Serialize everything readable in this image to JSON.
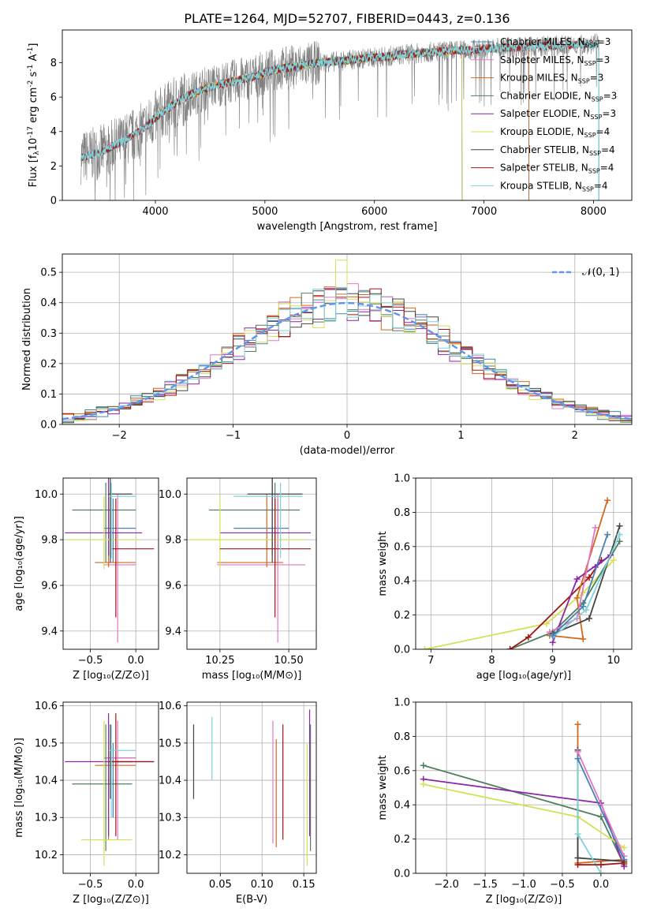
{
  "figure": {
    "title": "PLATE=1264, MJD=52707, FIBERID=0443, z=0.136"
  },
  "colors": {
    "chabrier_miles": "#4682b4",
    "salpeter_miles": "#e377c2",
    "kroupa_miles": "#d2691e",
    "chabrier_elodie": "#4f7f5f",
    "salpeter_elodie": "#8e24aa",
    "kroupa_elodie": "#d4e157",
    "chabrier_stelib": "#444444",
    "salpeter_stelib": "#a31515",
    "kroupa_stelib": "#7fd3d8",
    "data": "#808080",
    "normal_curve": "#6495ed"
  },
  "chart_data": [
    {
      "type": "line",
      "id": "spectrum",
      "xlabel": "wavelength [Angstrom, rest frame]",
      "ylabel_parts": [
        "Flux [f",
        "λ",
        "10",
        "-17",
        " erg cm",
        "-2",
        " s",
        "-1",
        " A",
        "-1",
        "]"
      ],
      "xlim": [
        3150,
        8350
      ],
      "ylim": [
        0,
        9.9
      ],
      "xticks": [
        "4000",
        "5000",
        "6000",
        "7000",
        "8000"
      ],
      "yticks": [
        "0",
        "2",
        "4",
        "6",
        "8"
      ],
      "legend_placement": "right",
      "legend": [
        {
          "name": "Chabrier MILES, N",
          "sub": "SSP",
          "tail": "=3",
          "color_key": "chabrier_miles"
        },
        {
          "name": "Salpeter MILES, N",
          "sub": "SSP",
          "tail": "=3",
          "color_key": "salpeter_miles"
        },
        {
          "name": "Kroupa MILES, N",
          "sub": "SSP",
          "tail": "=3",
          "color_key": "kroupa_miles"
        },
        {
          "name": "Chabrier ELODIE, N",
          "sub": "SSP",
          "tail": "=3",
          "color_key": "chabrier_elodie"
        },
        {
          "name": "Salpeter ELODIE, N",
          "sub": "SSP",
          "tail": "=3",
          "color_key": "salpeter_elodie"
        },
        {
          "name": "Kroupa ELODIE, N",
          "sub": "SSP",
          "tail": "=4",
          "color_key": "kroupa_elodie"
        },
        {
          "name": "Chabrier STELIB, N",
          "sub": "SSP",
          "tail": "=4",
          "color_key": "chabrier_stelib"
        },
        {
          "name": "Salpeter STELIB, N",
          "sub": "SSP",
          "tail": "=4",
          "color_key": "salpeter_stelib"
        },
        {
          "name": "Kroupa STELIB, N",
          "sub": "SSP",
          "tail": "=4",
          "color_key": "kroupa_stelib"
        }
      ],
      "continuum": {
        "x": [
          3320,
          3500,
          3700,
          3900,
          4000,
          4100,
          4300,
          4500,
          4700,
          4900,
          5100,
          5300,
          5500,
          5700,
          5900,
          6100,
          6300,
          6500,
          6700,
          6900,
          7100,
          7300,
          7500,
          7700,
          7900,
          8050
        ],
        "y": [
          2.5,
          2.8,
          3.4,
          4.2,
          4.8,
          5.3,
          6.1,
          6.6,
          6.9,
          7.2,
          7.6,
          7.8,
          8.0,
          8.1,
          8.25,
          8.35,
          8.5,
          8.6,
          8.7,
          8.75,
          8.85,
          8.9,
          8.95,
          9.0,
          9.05,
          9.1
        ]
      },
      "model_ranges": {
        "miles": [
          3540,
          7410
        ],
        "elodie": [
          3900,
          6800
        ],
        "stelib": [
          3320,
          8050
        ]
      }
    },
    {
      "type": "bar",
      "id": "residuals",
      "xlabel": "(data-model)/error",
      "ylabel": "Normed distribution",
      "xlim": [
        -2.5,
        2.5
      ],
      "ylim": [
        0,
        0.56
      ],
      "xticks": [
        "−2",
        "−1",
        "0",
        "1",
        "2"
      ],
      "yticks": [
        "0.0",
        "0.1",
        "0.2",
        "0.3",
        "0.4",
        "0.5"
      ],
      "legend_label": "𝒩(0, 1)",
      "legend_placement": "top-right",
      "bin_width": 0.1,
      "note": "nine step histograms plus a dashed normal curve"
    },
    {
      "type": "scatter",
      "id": "age_vs_Z",
      "xlabel": "Z [log₁₀(Z/Z⊙)]",
      "ylabel": "age  [log₁₀(age/yr)]",
      "xlim": [
        -0.8,
        0.25
      ],
      "ylim": [
        9.32,
        10.07
      ],
      "xticks": [
        "−0.5",
        "0.0"
      ],
      "yticks": [
        "9.4",
        "9.6",
        "9.8",
        "10.0"
      ],
      "points": [
        {
          "k": "chabrier_miles",
          "x": -0.25,
          "y": 9.85,
          "ex": [
            -0.35,
            0.0
          ],
          "ey": [
            9.7,
            9.98
          ]
        },
        {
          "k": "salpeter_miles",
          "x": -0.2,
          "y": 9.69,
          "ex": [
            -0.35,
            0.0
          ],
          "ey": [
            9.35,
            10.0
          ]
        },
        {
          "k": "kroupa_miles",
          "x": -0.3,
          "y": 9.7,
          "ex": [
            -0.45,
            0.0
          ],
          "ey": [
            9.68,
            10.0
          ]
        },
        {
          "k": "chabrier_elodie",
          "x": -0.33,
          "y": 9.93,
          "ex": [
            -0.7,
            0.0
          ],
          "ey": [
            9.7,
            10.05
          ]
        },
        {
          "k": "salpeter_elodie",
          "x": -0.3,
          "y": 9.83,
          "ex": [
            -0.78,
            0.07
          ],
          "ey": [
            9.73,
            10.08
          ]
        },
        {
          "k": "kroupa_elodie",
          "x": -0.35,
          "y": 9.8,
          "ex": [
            -0.75,
            0.05
          ],
          "ey": [
            9.67,
            9.99
          ]
        },
        {
          "k": "chabrier_stelib",
          "x": -0.28,
          "y": 10.0,
          "ex": [
            -0.3,
            -0.04
          ],
          "ey": [
            9.7,
            10.07
          ]
        },
        {
          "k": "salpeter_stelib",
          "x": -0.22,
          "y": 9.76,
          "ex": [
            -0.26,
            0.2
          ],
          "ey": [
            9.46,
            9.98
          ]
        },
        {
          "k": "kroupa_stelib",
          "x": -0.27,
          "y": 9.99,
          "ex": [
            -0.3,
            0.0
          ],
          "ey": [
            9.72,
            10.05
          ]
        }
      ]
    },
    {
      "type": "scatter",
      "id": "age_vs_mass",
      "xlabel": "mass [log₁₀(M/M⊙)]",
      "xlim": [
        10.13,
        10.6
      ],
      "ylim": [
        9.32,
        10.07
      ],
      "xticks": [
        "10.25",
        "10.50"
      ],
      "yticks": [
        "9.4",
        "9.6",
        "9.8",
        "10.0"
      ],
      "points": [
        {
          "k": "chabrier_miles",
          "x": 10.46,
          "y": 9.85,
          "ex": [
            10.3,
            10.5
          ],
          "ey": [
            9.7,
            9.98
          ]
        },
        {
          "k": "salpeter_miles",
          "x": 10.46,
          "y": 9.69,
          "ex": [
            10.24,
            10.56
          ],
          "ey": [
            9.35,
            10.0
          ]
        },
        {
          "k": "kroupa_miles",
          "x": 10.42,
          "y": 9.7,
          "ex": [
            10.24,
            10.48
          ],
          "ey": [
            9.68,
            10.0
          ]
        },
        {
          "k": "chabrier_elodie",
          "x": 10.45,
          "y": 9.93,
          "ex": [
            10.21,
            10.54
          ],
          "ey": [
            9.7,
            10.05
          ]
        },
        {
          "k": "salpeter_elodie",
          "x": 10.44,
          "y": 9.83,
          "ex": [
            10.25,
            10.58
          ],
          "ey": [
            9.73,
            10.08
          ]
        },
        {
          "k": "kroupa_elodie",
          "x": 10.25,
          "y": 9.8,
          "ex": [
            10.14,
            10.56
          ],
          "ey": [
            9.67,
            9.99
          ]
        },
        {
          "k": "chabrier_stelib",
          "x": 10.44,
          "y": 10.0,
          "ex": [
            10.35,
            10.55
          ],
          "ey": [
            9.7,
            10.07
          ]
        },
        {
          "k": "salpeter_stelib",
          "x": 10.45,
          "y": 9.76,
          "ex": [
            10.25,
            10.58
          ],
          "ey": [
            9.46,
            9.98
          ]
        },
        {
          "k": "kroupa_stelib",
          "x": 10.47,
          "y": 9.99,
          "ex": [
            10.3,
            10.55
          ],
          "ey": [
            9.72,
            10.05
          ]
        }
      ]
    },
    {
      "type": "line",
      "id": "weight_vs_age",
      "xlabel": "age  [log₁₀(age/yr)]",
      "ylabel": "mass weight",
      "xlim": [
        6.75,
        10.3
      ],
      "ylim": [
        0,
        1
      ],
      "xticks": [
        "7",
        "8",
        "9",
        "10"
      ],
      "yticks": [
        "0.0",
        "0.2",
        "0.4",
        "0.6",
        "0.8",
        "1.0"
      ],
      "series": [
        {
          "k": "kroupa_elodie",
          "x": [
            6.9,
            8.9,
            9.5,
            10.0
          ],
          "y": [
            0.0,
            0.15,
            0.33,
            0.52
          ]
        },
        {
          "k": "chabrier_elodie",
          "x": [
            8.3,
            9.0,
            9.5,
            10.1
          ],
          "y": [
            0.0,
            0.1,
            0.27,
            0.63
          ]
        },
        {
          "k": "salpeter_stelib",
          "x": [
            8.3,
            8.6,
            9.6,
            9.8
          ],
          "y": [
            0.0,
            0.07,
            0.42,
            0.52
          ]
        },
        {
          "k": "kroupa_miles",
          "x": [
            8.95,
            9.5,
            9.4,
            9.9
          ],
          "y": [
            0.08,
            0.06,
            0.3,
            0.87
          ]
        },
        {
          "k": "salpeter_elodie",
          "x": [
            9.0,
            9.4,
            9.95,
            9.7
          ],
          "y": [
            0.04,
            0.41,
            0.55,
            0.48
          ]
        },
        {
          "k": "salpeter_miles",
          "x": [
            8.95,
            9.4,
            9.7
          ],
          "y": [
            0.1,
            0.18,
            0.71
          ]
        },
        {
          "k": "chabrier_stelib",
          "x": [
            9.0,
            9.6,
            10.1
          ],
          "y": [
            0.09,
            0.18,
            0.72
          ]
        },
        {
          "k": "kroupa_stelib",
          "x": [
            9.0,
            9.55,
            10.1
          ],
          "y": [
            0.07,
            0.23,
            0.67
          ]
        },
        {
          "k": "chabrier_miles",
          "x": [
            9.0,
            9.5,
            9.9
          ],
          "y": [
            0.08,
            0.25,
            0.67
          ]
        }
      ]
    },
    {
      "type": "scatter",
      "id": "mass_vs_Z",
      "xlabel": "Z [log₁₀(Z/Z⊙)]",
      "ylabel": "mass [log₁₀(M/M⊙)]",
      "xlim": [
        -0.8,
        0.25
      ],
      "ylim": [
        10.15,
        10.61
      ],
      "xticks": [
        "−0.5",
        "0.0"
      ],
      "yticks": [
        "10.2",
        "10.3",
        "10.4",
        "10.5",
        "10.6"
      ],
      "points": [
        {
          "k": "chabrier_miles",
          "x": -0.25,
          "y": 10.46,
          "ex": [
            -0.35,
            0.0
          ],
          "ey": [
            10.3,
            10.5
          ]
        },
        {
          "k": "salpeter_miles",
          "x": -0.2,
          "y": 10.46,
          "ex": [
            -0.35,
            0.0
          ],
          "ey": [
            10.24,
            10.56
          ]
        },
        {
          "k": "kroupa_miles",
          "x": -0.3,
          "y": 10.44,
          "ex": [
            -0.45,
            0.0
          ],
          "ey": [
            10.24,
            10.48
          ]
        },
        {
          "k": "chabrier_elodie",
          "x": -0.33,
          "y": 10.39,
          "ex": [
            -0.7,
            -0.04
          ],
          "ey": [
            10.21,
            10.55
          ]
        },
        {
          "k": "salpeter_elodie",
          "x": -0.3,
          "y": 10.45,
          "ex": [
            -0.78,
            0.2
          ],
          "ey": [
            10.25,
            10.58
          ]
        },
        {
          "k": "kroupa_elodie",
          "x": -0.35,
          "y": 10.24,
          "ex": [
            -0.6,
            -0.04
          ],
          "ey": [
            10.17,
            10.56
          ]
        },
        {
          "k": "chabrier_stelib",
          "x": -0.28,
          "y": 10.45,
          "ex": [
            -0.3,
            -0.04
          ],
          "ey": [
            10.35,
            10.55
          ]
        },
        {
          "k": "salpeter_stelib",
          "x": -0.22,
          "y": 10.45,
          "ex": [
            -0.26,
            0.2
          ],
          "ey": [
            10.25,
            10.58
          ]
        },
        {
          "k": "kroupa_stelib",
          "x": -0.27,
          "y": 10.48,
          "ex": [
            -0.3,
            0.0
          ],
          "ey": [
            10.3,
            10.55
          ]
        }
      ]
    },
    {
      "type": "scatter",
      "id": "mass_vs_ebv",
      "xlabel": "E(B-V)",
      "xlim": [
        0.01,
        0.165
      ],
      "ylim": [
        10.15,
        10.61
      ],
      "xticks": [
        "0.05",
        "0.10",
        "0.15"
      ],
      "yticks": [
        "10.2",
        "10.3",
        "10.4",
        "10.5",
        "10.6"
      ],
      "points": [
        {
          "k": "chabrier_stelib",
          "x": 0.018,
          "ey": [
            10.35,
            10.55
          ]
        },
        {
          "k": "kroupa_stelib",
          "x": 0.04,
          "ey": [
            10.4,
            10.57
          ]
        },
        {
          "k": "salpeter_miles",
          "x": 0.113,
          "ey": [
            10.23,
            10.56
          ]
        },
        {
          "k": "kroupa_miles",
          "x": 0.117,
          "ey": [
            10.22,
            10.51
          ]
        },
        {
          "k": "salpeter_stelib",
          "x": 0.125,
          "ey": [
            10.24,
            10.55
          ]
        },
        {
          "k": "kroupa_elodie",
          "x": 0.154,
          "ey": [
            10.17,
            10.5
          ]
        },
        {
          "k": "salpeter_elodie",
          "x": 0.157,
          "ey": [
            10.25,
            10.59
          ]
        },
        {
          "k": "chabrier_elodie",
          "x": 0.158,
          "ey": [
            10.21,
            10.55
          ]
        }
      ]
    },
    {
      "type": "line",
      "id": "weight_vs_Z",
      "xlabel": "Z [log₁₀(Z/Z⊙)]",
      "ylabel": "mass weight",
      "xlim": [
        -2.4,
        0.4
      ],
      "ylim": [
        0,
        1
      ],
      "xticks": [
        "−2.0",
        "−1.5",
        "−1.0",
        "−0.5",
        "0.0"
      ],
      "yticks": [
        "0.0",
        "0.2",
        "0.4",
        "0.6",
        "0.8",
        "1.0"
      ],
      "series": [
        {
          "k": "chabrier_elodie",
          "x": [
            -2.3,
            0.0,
            0.3
          ],
          "y": [
            0.63,
            0.33,
            0.05
          ]
        },
        {
          "k": "salpeter_elodie",
          "x": [
            -2.3,
            0.0,
            0.3
          ],
          "y": [
            0.55,
            0.41,
            0.04
          ]
        },
        {
          "k": "kroupa_elodie",
          "x": [
            -2.3,
            -0.3,
            0.3
          ],
          "y": [
            0.52,
            0.33,
            0.15
          ]
        },
        {
          "k": "kroupa_miles",
          "x": [
            -0.3,
            -0.3,
            0.3
          ],
          "y": [
            0.87,
            0.06,
            0.08
          ]
        },
        {
          "k": "chabrier_stelib",
          "x": [
            -0.3,
            -0.3,
            0.3
          ],
          "y": [
            0.72,
            0.09,
            0.07
          ]
        },
        {
          "k": "kroupa_stelib",
          "x": [
            -0.3,
            -0.3,
            0.0
          ],
          "y": [
            0.67,
            0.23,
            0.0
          ]
        },
        {
          "k": "salpeter_miles",
          "x": [
            -0.3,
            0.3
          ],
          "y": [
            0.71,
            0.1
          ]
        },
        {
          "k": "chabrier_miles",
          "x": [
            -0.3,
            0.3
          ],
          "y": [
            0.67,
            0.08
          ]
        },
        {
          "k": "salpeter_stelib",
          "x": [
            -0.3,
            0.0,
            0.3
          ],
          "y": [
            0.05,
            0.05,
            0.06
          ]
        }
      ]
    }
  ]
}
